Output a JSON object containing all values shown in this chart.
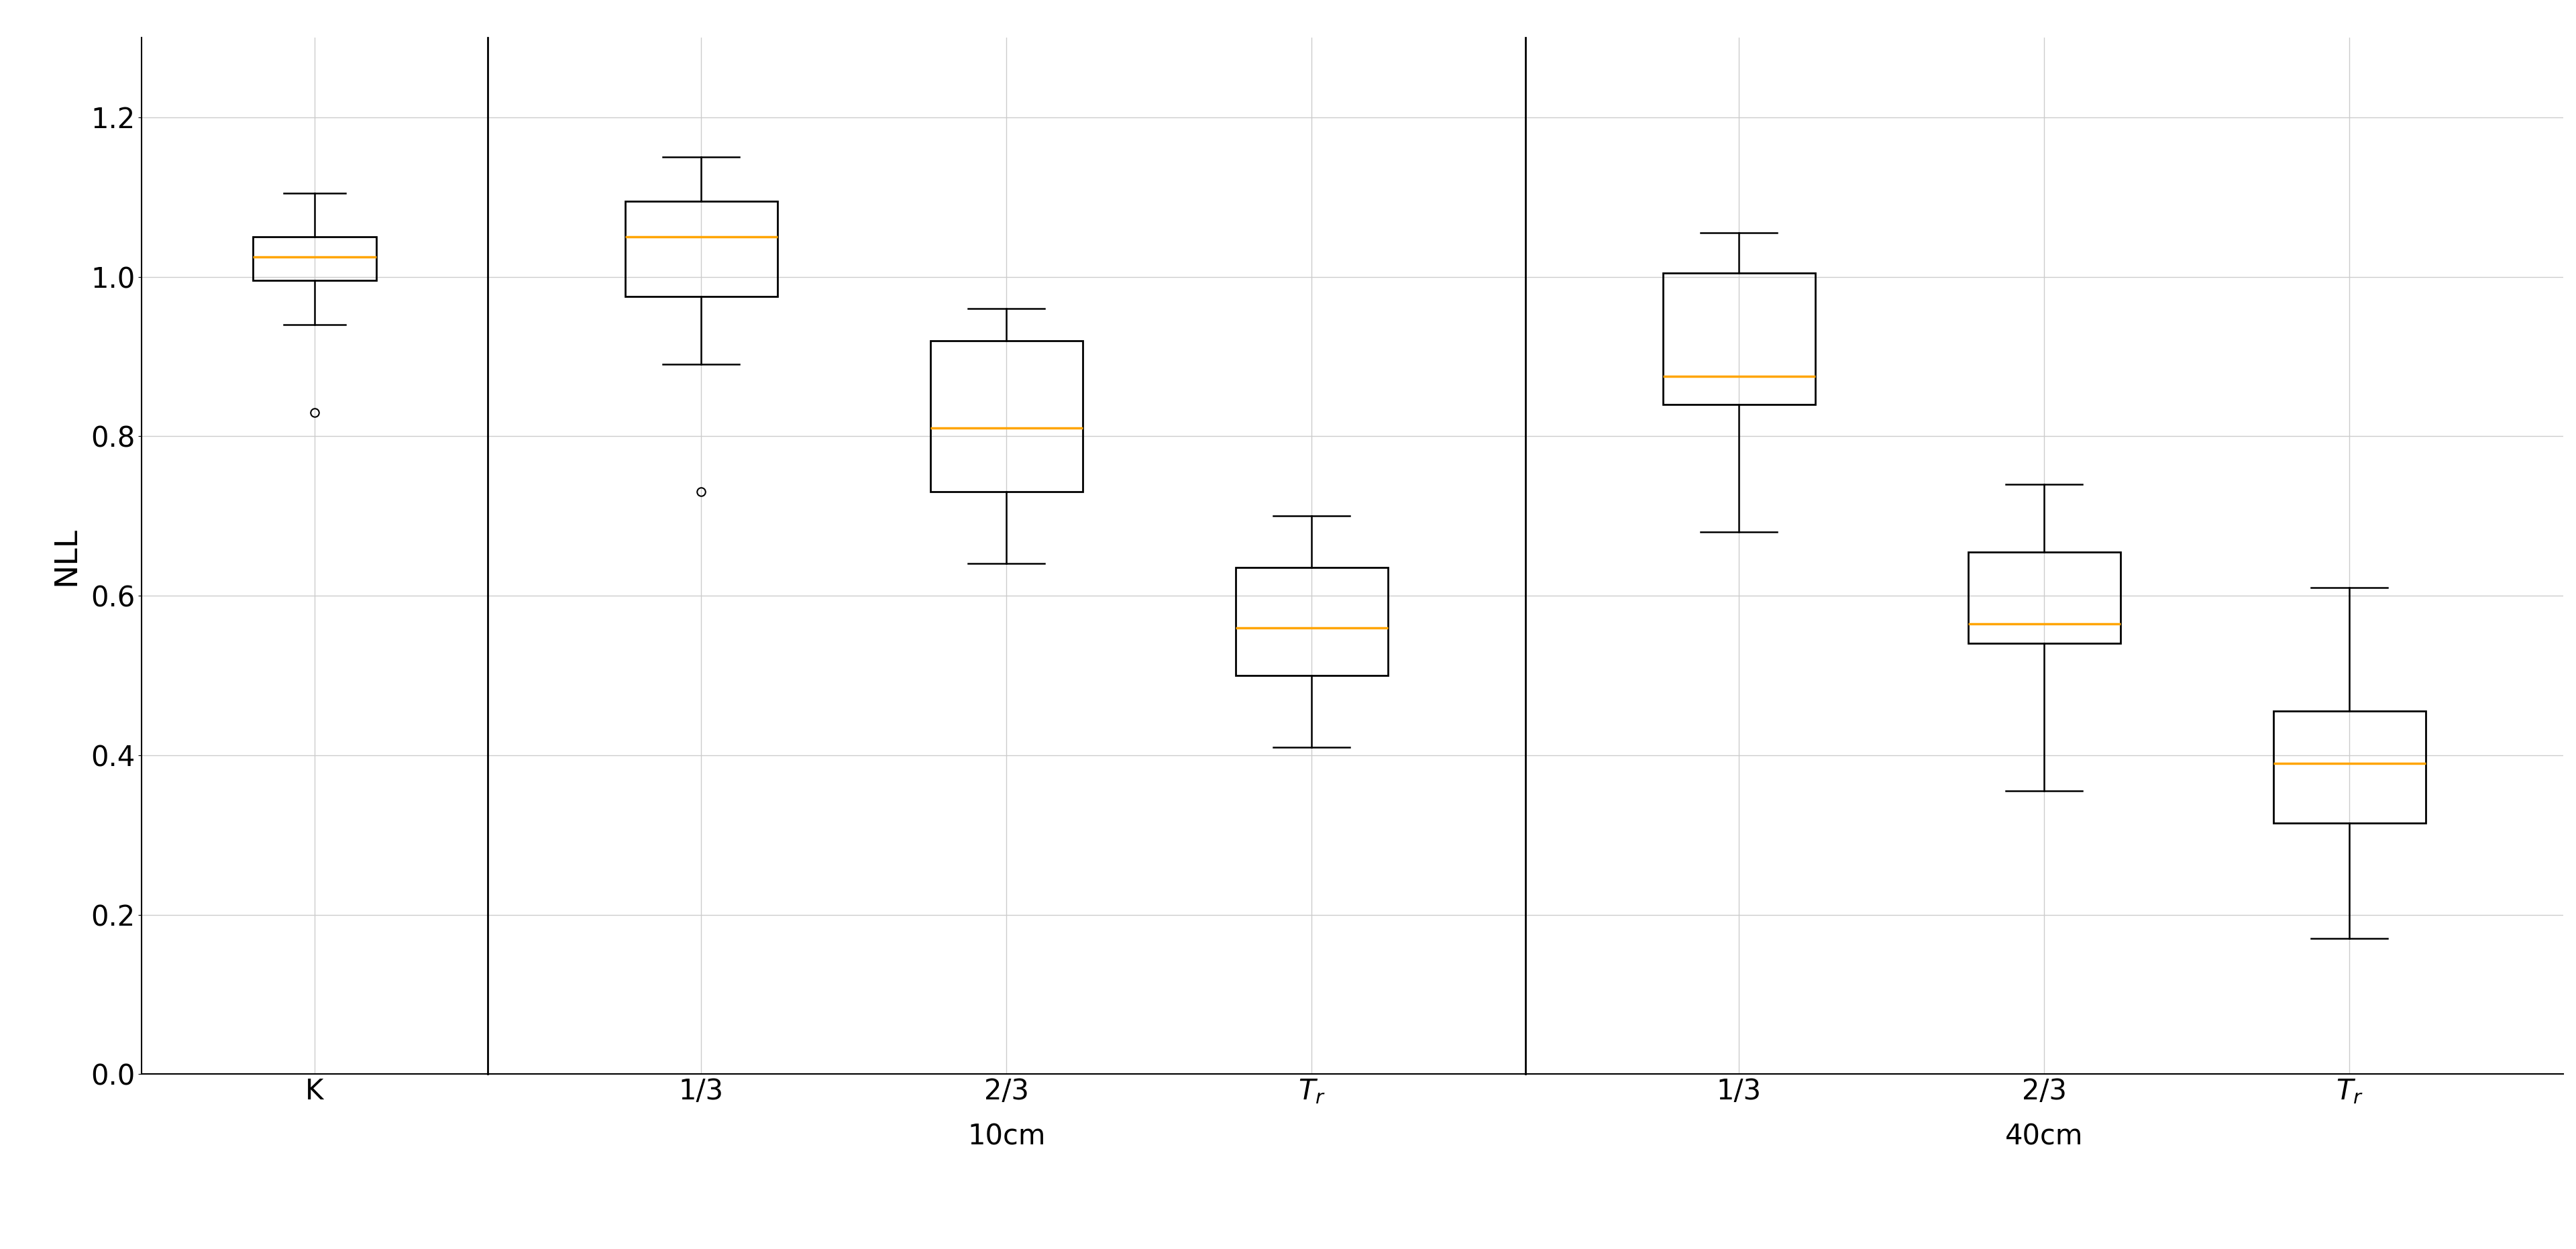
{
  "ylabel": "NLL",
  "ylim": [
    0.0,
    1.3
  ],
  "yticks": [
    0.0,
    0.2,
    0.4,
    0.6,
    0.8,
    1.0,
    1.2
  ],
  "background_color": "#ffffff",
  "grid_color": "#cccccc",
  "median_color": "#FFA500",
  "box_color": "#000000",
  "boxes": {
    "K": {
      "whislo": 0.94,
      "q1": 0.995,
      "med": 1.025,
      "q3": 1.05,
      "whishi": 1.105,
      "fliers": [
        0.83
      ]
    },
    "10cm_1/3": {
      "whislo": 0.89,
      "q1": 0.975,
      "med": 1.05,
      "q3": 1.095,
      "whishi": 1.15,
      "fliers": [
        0.73
      ]
    },
    "10cm_2/3": {
      "whislo": 0.64,
      "q1": 0.73,
      "med": 0.81,
      "q3": 0.92,
      "whishi": 0.96,
      "fliers": []
    },
    "10cm_Tr": {
      "whislo": 0.41,
      "q1": 0.5,
      "med": 0.56,
      "q3": 0.635,
      "whishi": 0.7,
      "fliers": []
    },
    "40cm_1/3": {
      "whislo": 0.68,
      "q1": 0.84,
      "med": 0.875,
      "q3": 1.005,
      "whishi": 1.055,
      "fliers": []
    },
    "40cm_2/3": {
      "whislo": 0.355,
      "q1": 0.54,
      "med": 0.565,
      "q3": 0.655,
      "whishi": 0.74,
      "fliers": []
    },
    "40cm_Tr": {
      "whislo": 0.17,
      "q1": 0.315,
      "med": 0.39,
      "q3": 0.455,
      "whishi": 0.61,
      "fliers": []
    }
  }
}
